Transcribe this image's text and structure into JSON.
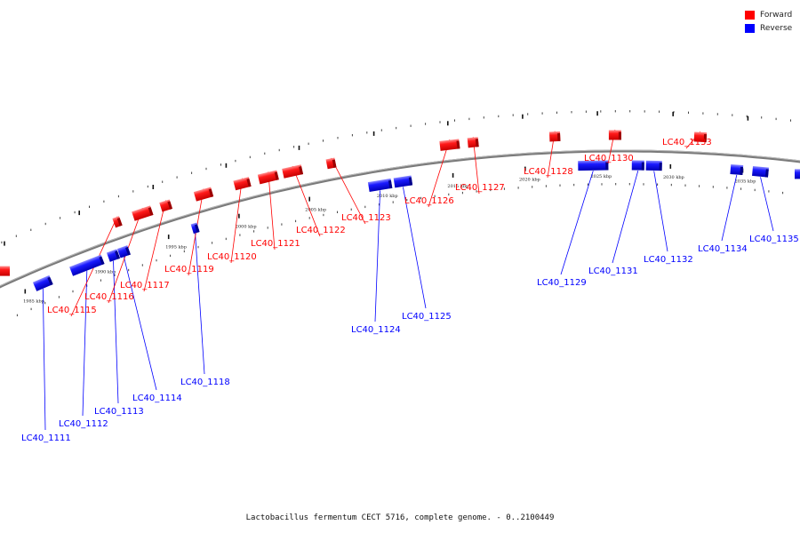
{
  "title": "Lactobacillus fermentum CECT 5716, complete genome. - 0..2100449",
  "legend": [
    {
      "label": "Forward",
      "color": "#ff0000"
    },
    {
      "label": "Reverse",
      "color": "#0000ff"
    }
  ],
  "colors": {
    "forward": "#ff0000",
    "reverse": "#0000ff",
    "backbone": "#808080"
  },
  "ticks": [
    "1985 kbp",
    "1990 kbp",
    "1995 kbp",
    "2000 kbp",
    "2005 kbp",
    "2010 kbp",
    "2015 kbp",
    "2020 kbp",
    "2025 kbp",
    "2030 kbp",
    "2035 kbp"
  ],
  "genes": [
    {
      "name": "LC40_1111",
      "strand": "reverse"
    },
    {
      "name": "LC40_1112",
      "strand": "reverse"
    },
    {
      "name": "LC40_1113",
      "strand": "reverse"
    },
    {
      "name": "LC40_1114",
      "strand": "reverse"
    },
    {
      "name": "LC40_1115",
      "strand": "forward"
    },
    {
      "name": "LC40_1116",
      "strand": "forward"
    },
    {
      "name": "LC40_1117",
      "strand": "forward"
    },
    {
      "name": "LC40_1118",
      "strand": "reverse"
    },
    {
      "name": "LC40_1119",
      "strand": "forward"
    },
    {
      "name": "LC40_1120",
      "strand": "forward"
    },
    {
      "name": "LC40_1121",
      "strand": "forward"
    },
    {
      "name": "LC40_1122",
      "strand": "forward"
    },
    {
      "name": "LC40_1123",
      "strand": "forward"
    },
    {
      "name": "LC40_1124",
      "strand": "reverse"
    },
    {
      "name": "LC40_1125",
      "strand": "reverse"
    },
    {
      "name": "LC40_1126",
      "strand": "forward"
    },
    {
      "name": "LC40_1127",
      "strand": "forward"
    },
    {
      "name": "LC40_1128",
      "strand": "forward"
    },
    {
      "name": "LC40_1129",
      "strand": "reverse"
    },
    {
      "name": "LC40_1130",
      "strand": "forward"
    },
    {
      "name": "LC40_1131",
      "strand": "reverse"
    },
    {
      "name": "LC40_1132",
      "strand": "reverse"
    },
    {
      "name": "LC40_1133",
      "strand": "forward"
    },
    {
      "name": "LC40_1134",
      "strand": "reverse"
    },
    {
      "name": "LC40_1135",
      "strand": "reverse"
    }
  ]
}
